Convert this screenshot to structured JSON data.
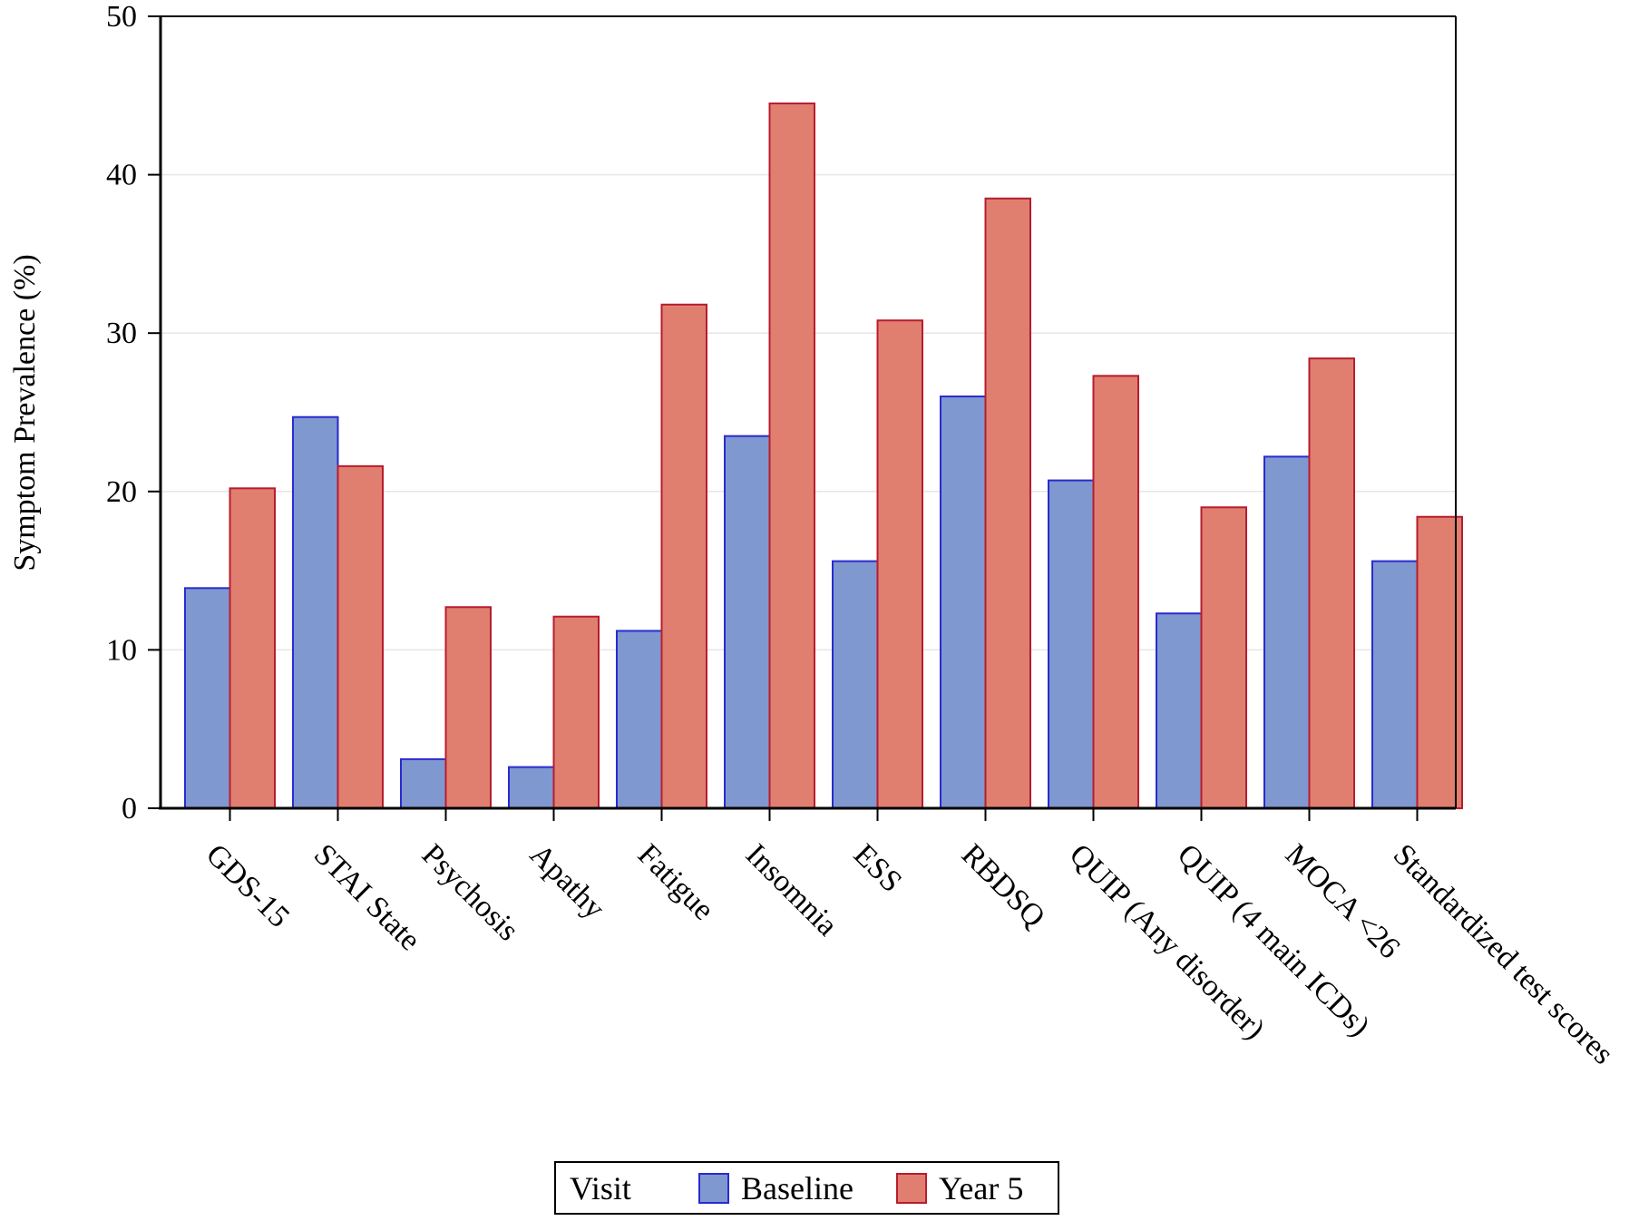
{
  "chart_data": {
    "type": "bar",
    "title": "",
    "xlabel": "",
    "ylabel": "Symptom Prevalence (%)",
    "ylim": [
      0,
      50
    ],
    "yticks": [
      0,
      10,
      20,
      30,
      40,
      50
    ],
    "grid": "horizontal",
    "legend": {
      "placement": "bottom-center",
      "title": "Visit"
    },
    "categories": [
      "GDS-15",
      "STAI State",
      "Psychosis",
      "Apathy",
      "Fatigue",
      "Insomnia",
      "ESS",
      "RBDSQ",
      "QUIP (Any disorder)",
      "QUIP (4 main ICDs)",
      "MOCA <26",
      "Standardized test scores"
    ],
    "series": [
      {
        "name": "Baseline",
        "fill": "#7f98cf",
        "stroke": "#2a2ad0",
        "values": [
          13.9,
          24.7,
          3.1,
          2.6,
          11.2,
          23.5,
          15.6,
          26.0,
          20.7,
          12.3,
          22.2,
          15.6
        ]
      },
      {
        "name": "Year 5",
        "fill": "#e07f70",
        "stroke": "#b81c2e",
        "values": [
          20.2,
          21.6,
          12.7,
          12.1,
          31.8,
          44.5,
          30.8,
          38.5,
          27.3,
          19.0,
          28.4,
          18.4
        ]
      }
    ]
  }
}
